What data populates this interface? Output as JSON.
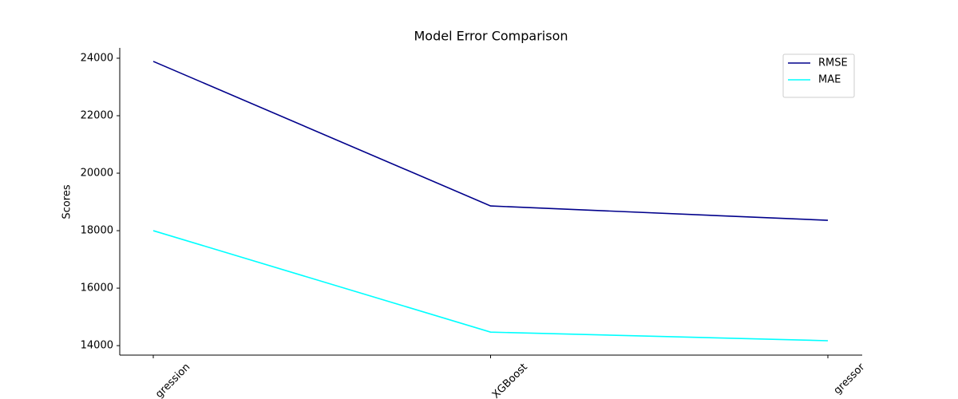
{
  "chart_data": {
    "type": "line",
    "title": "Model Error Comparison",
    "ylabel": "Scores",
    "categories": [
      "gression",
      "XGBoost",
      "gressor"
    ],
    "series": [
      {
        "name": "RMSE",
        "color": "#00008b",
        "values": [
          23890,
          18860,
          18360
        ]
      },
      {
        "name": "MAE",
        "color": "#00ffff",
        "values": [
          18000,
          14470,
          14170
        ]
      }
    ],
    "ylim": [
      13670,
      24360
    ],
    "yticks": [
      14000,
      16000,
      18000,
      20000,
      22000,
      24000
    ],
    "legend": "upper right"
  }
}
